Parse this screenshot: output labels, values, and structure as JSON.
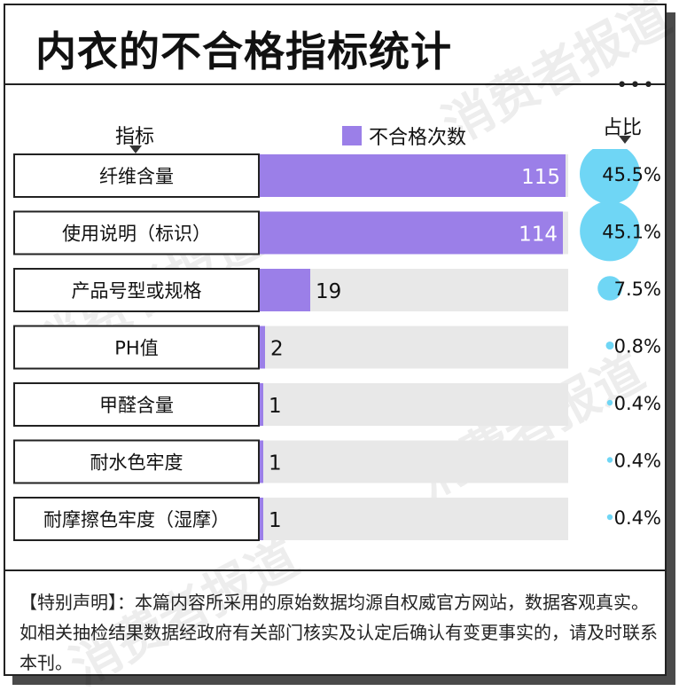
{
  "title": "内衣的不合格指标统计",
  "watermark": "消费者报道",
  "headers": {
    "indicator": "指标",
    "legend": "不合格次数",
    "share": "占比"
  },
  "colors": {
    "bar": "#9b7fe8",
    "track": "#e8e8e8",
    "bubble": "#6fd6f5"
  },
  "chart_data": {
    "type": "bar",
    "orientation": "horizontal",
    "categories": [
      "纤维含量",
      "使用说明（标识）",
      "产品号型或规格",
      "PH值",
      "甲醛含量",
      "耐水色牢度",
      "耐摩擦色牢度（湿摩）"
    ],
    "series": [
      {
        "name": "不合格次数",
        "values": [
          115,
          114,
          19,
          2,
          1,
          1,
          1
        ]
      }
    ],
    "shares": [
      "45.5%",
      "45.1%",
      "7.5%",
      "0.8%",
      "0.4%",
      "0.4%",
      "0.4%"
    ],
    "xlim": [
      0,
      116
    ]
  },
  "footer": "【特别声明】：本篇内容所采用的原始数据均源自权威官方网站，数据客观真实。如相关抽检结果数据经政府有关部门核实及认定后确认有变更事实的，请及时联系本刊。"
}
